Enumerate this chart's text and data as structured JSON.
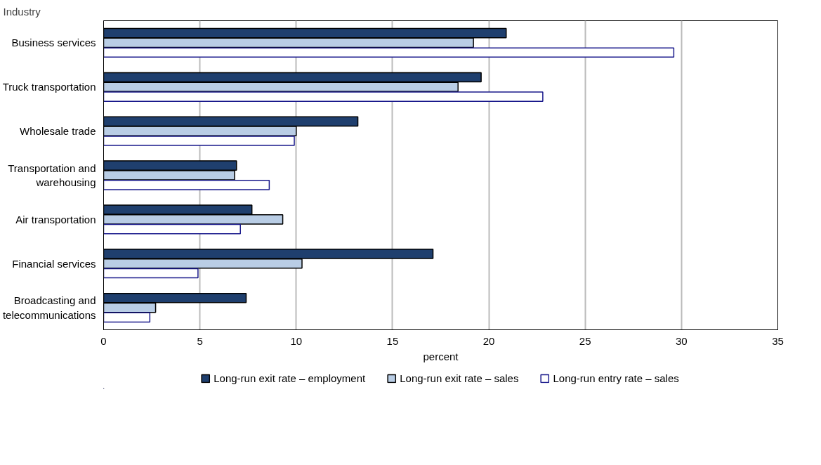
{
  "chart_data": {
    "type": "bar",
    "orientation": "horizontal",
    "ylabel": "Industry",
    "xlabel": "percent",
    "categories": [
      "Business services",
      "Truck transportation",
      "Wholesale trade",
      "Transportation and warehousing",
      "Air transportation",
      "Financial services",
      "Broadcasting and telecommunications"
    ],
    "series": [
      {
        "name": "Long-run exit rate – employment",
        "color": "#1f3f6e",
        "values": [
          20.9,
          19.6,
          13.2,
          6.9,
          7.7,
          17.1,
          7.4
        ]
      },
      {
        "name": "Long-run exit rate – sales",
        "color": "#b9cde5",
        "values": [
          19.2,
          18.4,
          10.0,
          6.8,
          9.3,
          10.3,
          2.7
        ]
      },
      {
        "name": "Long-run entry rate – sales",
        "color": "#ffffff",
        "values": [
          29.6,
          22.8,
          9.9,
          8.6,
          7.1,
          4.9,
          2.4
        ]
      }
    ],
    "xlim": [
      0,
      35
    ],
    "xticks": [
      0,
      5,
      10,
      15,
      20,
      25,
      30,
      35
    ],
    "grid": "x",
    "legend": "bottom"
  }
}
